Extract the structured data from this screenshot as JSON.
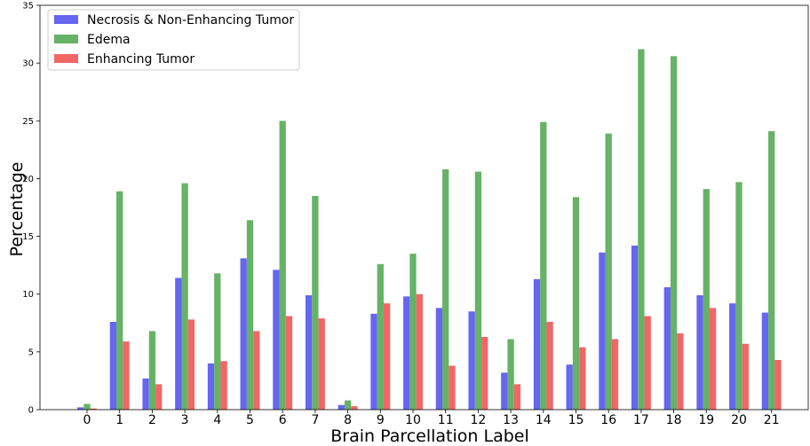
{
  "chart_data": {
    "type": "bar",
    "title": "",
    "xlabel": "Brain Parcellation Label",
    "ylabel": "Percentage",
    "ylim": [
      0,
      35
    ],
    "yticks": [
      0,
      5,
      10,
      15,
      20,
      25,
      30,
      35
    ],
    "grid": false,
    "legend_position": "top-left",
    "categories": [
      "0",
      "1",
      "2",
      "3",
      "4",
      "5",
      "6",
      "7",
      "8",
      "9",
      "10",
      "11",
      "12",
      "13",
      "14",
      "15",
      "16",
      "17",
      "18",
      "19",
      "20",
      "21"
    ],
    "series": [
      {
        "name": "Necrosis & Non-Enhancing Tumor",
        "color": "#6666f0",
        "values": [
          0.2,
          7.6,
          2.7,
          11.4,
          4.0,
          13.1,
          12.1,
          9.9,
          0.4,
          8.3,
          9.8,
          8.8,
          8.5,
          3.2,
          11.3,
          3.9,
          13.6,
          14.2,
          10.6,
          9.9,
          9.2,
          8.4
        ]
      },
      {
        "name": "Edema",
        "color": "#66b266",
        "values": [
          0.5,
          18.9,
          6.8,
          19.6,
          11.8,
          16.4,
          25.0,
          18.5,
          0.8,
          12.6,
          13.5,
          20.8,
          20.6,
          6.1,
          24.9,
          18.4,
          23.9,
          31.2,
          30.6,
          19.1,
          19.7,
          24.1
        ]
      },
      {
        "name": "Enhancing Tumor",
        "color": "#f26666",
        "values": [
          0.1,
          5.9,
          2.2,
          7.8,
          4.2,
          6.8,
          8.1,
          7.9,
          0.3,
          9.2,
          10.0,
          3.8,
          6.3,
          2.2,
          7.6,
          5.4,
          6.1,
          8.1,
          6.6,
          8.8,
          5.7,
          4.3
        ]
      }
    ]
  }
}
